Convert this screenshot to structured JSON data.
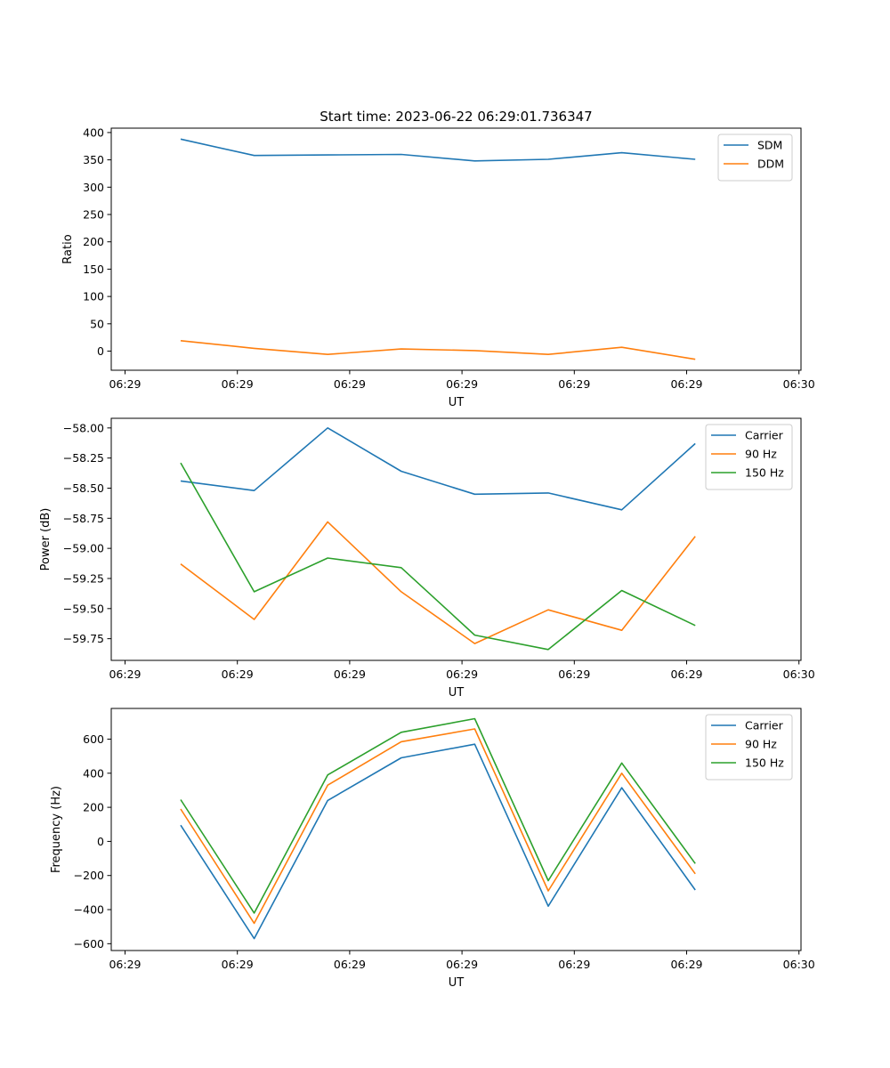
{
  "figure_title": "Start time: 2023-06-22 06:29:01.736347",
  "colors": {
    "c0": "#1f77b4",
    "c1": "#ff7f0e",
    "c2": "#2ca02c"
  },
  "chart_data": [
    {
      "type": "line",
      "title": "Start time: 2023-06-22 06:29:01.736347",
      "xlabel": "UT",
      "ylabel": "Ratio",
      "xtick_labels": [
        "06:29",
        "06:29",
        "06:29",
        "06:29",
        "06:29",
        "06:29",
        "06:30"
      ],
      "yticks": [
        0,
        50,
        100,
        150,
        200,
        250,
        300,
        350,
        400
      ],
      "ylim": [
        -35,
        408
      ],
      "legend": "top-right",
      "grid": false,
      "x": [
        1,
        2,
        3,
        4,
        5,
        6,
        7,
        8
      ],
      "series": [
        {
          "name": "SDM",
          "color": "#1f77b4",
          "values": [
            388,
            358,
            359,
            360,
            348,
            351,
            363,
            351
          ]
        },
        {
          "name": "DDM",
          "color": "#ff7f0e",
          "values": [
            19,
            5,
            -6,
            4,
            1,
            -6,
            7,
            -15
          ]
        }
      ]
    },
    {
      "type": "line",
      "xlabel": "UT",
      "ylabel": "Power (dB)",
      "xtick_labels": [
        "06:29",
        "06:29",
        "06:29",
        "06:29",
        "06:29",
        "06:29",
        "06:30"
      ],
      "yticks": [
        -58.0,
        -58.25,
        -58.5,
        -58.75,
        -59.0,
        -59.25,
        -59.5,
        -59.75
      ],
      "ytick_labels": [
        "−58.00",
        "−58.25",
        "−58.50",
        "−58.75",
        "−59.00",
        "−59.25",
        "−59.50",
        "−59.75"
      ],
      "ylim": [
        -59.93,
        -57.92
      ],
      "legend": "top-right",
      "grid": false,
      "x": [
        1,
        2,
        3,
        4,
        5,
        6,
        7,
        8
      ],
      "series": [
        {
          "name": "Carrier",
          "color": "#1f77b4",
          "values": [
            -58.44,
            -58.52,
            -58.0,
            -58.36,
            -58.55,
            -58.54,
            -58.68,
            -58.13
          ]
        },
        {
          "name": "90 Hz",
          "color": "#ff7f0e",
          "values": [
            -59.13,
            -59.59,
            -58.78,
            -59.36,
            -59.79,
            -59.51,
            -59.68,
            -58.9
          ]
        },
        {
          "name": "150 Hz",
          "color": "#2ca02c",
          "values": [
            -58.29,
            -59.36,
            -59.08,
            -59.16,
            -59.72,
            -59.84,
            -59.35,
            -59.64
          ]
        }
      ]
    },
    {
      "type": "line",
      "xlabel": "UT",
      "ylabel": "Frequency (Hz)",
      "xtick_labels": [
        "06:29",
        "06:29",
        "06:29",
        "06:29",
        "06:29",
        "06:29",
        "06:30"
      ],
      "yticks": [
        -600,
        -400,
        -200,
        0,
        200,
        400,
        600
      ],
      "ytick_labels": [
        "−600",
        "−400",
        "−200",
        "0",
        "200",
        "400",
        "600"
      ],
      "ylim": [
        -640,
        780
      ],
      "legend": "top-right",
      "grid": false,
      "x": [
        1,
        2,
        3,
        4,
        5,
        6,
        7,
        8
      ],
      "series": [
        {
          "name": "Carrier",
          "color": "#1f77b4",
          "values": [
            95,
            -570,
            240,
            490,
            570,
            -380,
            315,
            -285
          ]
        },
        {
          "name": "90 Hz",
          "color": "#ff7f0e",
          "values": [
            190,
            -480,
            330,
            585,
            660,
            -290,
            400,
            -190
          ]
        },
        {
          "name": "150 Hz",
          "color": "#2ca02c",
          "values": [
            245,
            -420,
            390,
            640,
            720,
            -230,
            460,
            -130
          ]
        }
      ]
    }
  ]
}
